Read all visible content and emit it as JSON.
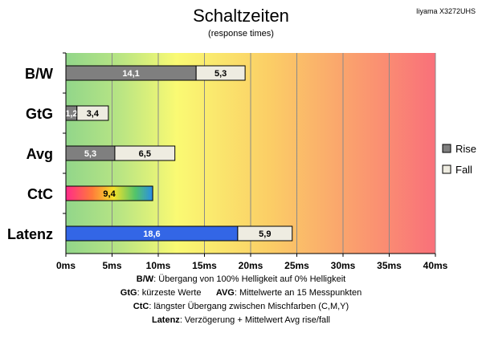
{
  "chart_data": {
    "type": "bar",
    "title": "Schaltzeiten",
    "subtitle": "(response times)",
    "monitor": "Iiyama X3272UHS",
    "categories": [
      "B/W",
      "GtG",
      "Avg",
      "CtC",
      "Latenz"
    ],
    "series": [
      {
        "name": "Rise",
        "values": [
          14.1,
          1.2,
          5.3,
          null,
          null
        ]
      },
      {
        "name": "Fall",
        "values": [
          5.3,
          3.4,
          6.5,
          null,
          5.9
        ]
      }
    ],
    "single_values": {
      "CtC": 9.4,
      "Latenz": 18.6
    },
    "value_labels": {
      "B/W": [
        "14,1",
        "5,3"
      ],
      "GtG": [
        "1,2",
        "3,4"
      ],
      "Avg": [
        "5,3",
        "6,5"
      ],
      "CtC": [
        "9,4"
      ],
      "Latenz": [
        "18,6",
        "5,9"
      ]
    },
    "xlim": [
      0,
      40
    ],
    "xticks": [
      "0ms",
      "5ms",
      "10ms",
      "15ms",
      "20ms",
      "25ms",
      "30ms",
      "35ms",
      "40ms"
    ],
    "legend": [
      "Rise",
      "Fall"
    ],
    "legend_position": "right",
    "grid": true,
    "colors": {
      "rise": "#7f7f7f",
      "fall": "#eeece1",
      "latency": "#3366e6",
      "bg_green": "#92d68a",
      "bg_yellow": "#fafa73",
      "bg_red": "#f9707a"
    }
  },
  "notes": {
    "line1_label": "B/W",
    "line1_text": ":  Übergang von 100% Helligkeit auf 0% Helligkeit",
    "line2_label_a": "GtG",
    "line2_text_a": ": kürzeste  Werte",
    "line2_label_b": "AVG",
    "line2_text_b": ": Mittelwerte  an 15 Messpunkten",
    "line3_label": "CtC",
    "line3_text": ": längster Übergang  zwischen Mischfarben  (C,M,Y)",
    "line4_label": "Latenz",
    "line4_text": ": Verzögerung  + Mittelwert Avg rise/fall"
  }
}
